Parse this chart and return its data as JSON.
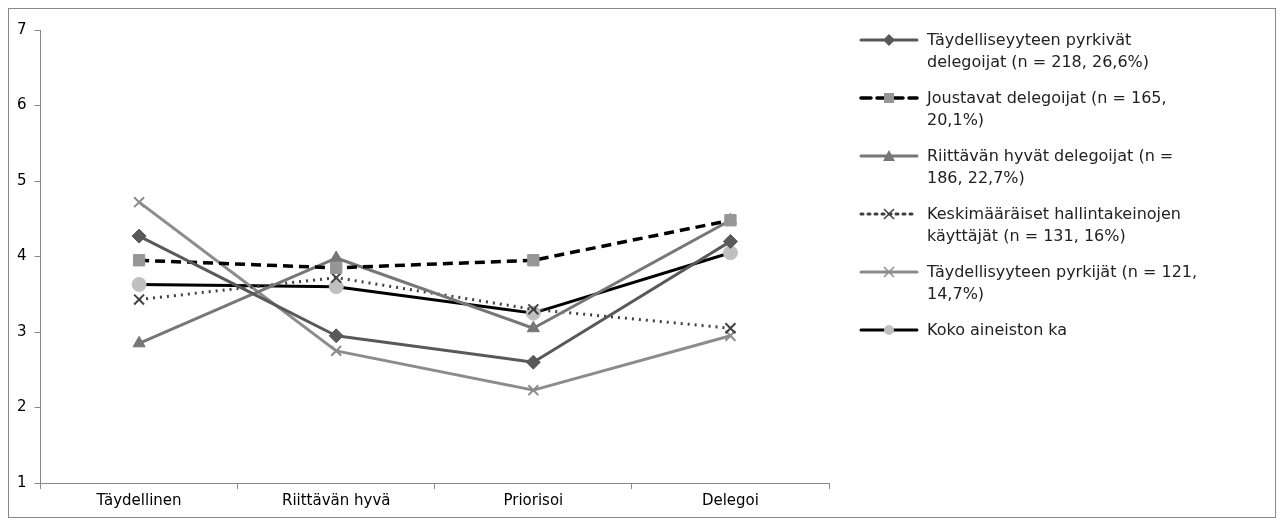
{
  "chart_data": {
    "type": "line",
    "categories": [
      "Täydellinen",
      "Riittävän hyvä",
      "Priorisoi",
      "Delegoi"
    ],
    "ylim": [
      1,
      7
    ],
    "yticks": [
      1,
      2,
      3,
      4,
      5,
      6,
      7
    ],
    "grid": false,
    "legend": "right",
    "series": [
      {
        "name": "Täydelliseyyteen pyrkivät delegoijat (n = 218, 26,6%)",
        "color": "#595959",
        "marker": "diamond",
        "line_style": "solid",
        "values": [
          4.27,
          2.95,
          2.6,
          4.2
        ]
      },
      {
        "name": "Joustavat delegoijat (n = 165, 20,1%)",
        "color": "#000000",
        "colors": [
          "#969696",
          "#969696",
          "#969696",
          "#969696"
        ],
        "marker": "square",
        "line_style": "dashed",
        "values": [
          3.95,
          3.85,
          3.95,
          4.48
        ]
      },
      {
        "name": "Riittävän hyvät delegoijat (n = 186, 22,7%)",
        "color": "#777777",
        "marker": "triangle",
        "line_style": "solid",
        "values": [
          2.85,
          3.98,
          3.05,
          4.48
        ]
      },
      {
        "name": "Keskimääräiset hallintakeinojen käyttäjät (n = 131, 16%)",
        "color": "#404040",
        "marker": "cross",
        "line_style": "dotted",
        "values": [
          3.43,
          3.72,
          3.3,
          3.05
        ]
      },
      {
        "name": "Täydellisyyteen pyrkijät (n = 121, 14,7%)",
        "color": "#8c8c8c",
        "marker": "cross",
        "line_style": "solid",
        "values": [
          4.72,
          2.75,
          2.23,
          2.95
        ]
      },
      {
        "name": "Koko aineiston ka",
        "color": "#000000",
        "colors": [
          "#c0c0c0",
          "#c0c0c0",
          "#c0c0c0",
          "#c0c0c0"
        ],
        "marker": "circle",
        "line_style": "solid",
        "values": [
          3.63,
          3.6,
          3.25,
          4.05
        ]
      }
    ]
  }
}
